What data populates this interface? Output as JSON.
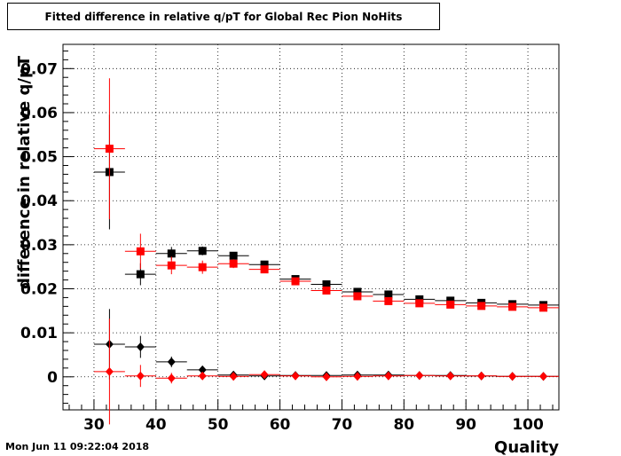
{
  "chart_data": {
    "type": "scatter",
    "title": "Fitted difference in relative q/pT for Global Rec Pion NoHits",
    "xlabel": "Quality",
    "ylabel": "difference in relative q/pT",
    "xlim": [
      25,
      105
    ],
    "ylim": [
      -0.0075,
      0.0755
    ],
    "x_ticks": [
      30,
      40,
      50,
      60,
      70,
      80,
      90,
      100
    ],
    "y_ticks": [
      0,
      0.01,
      0.02,
      0.03,
      0.04,
      0.05,
      0.06,
      0.07
    ],
    "y_tick_labels": [
      "0",
      "0.01",
      "0.02",
      "0.03",
      "0.04",
      "0.05",
      "0.06",
      "0.07"
    ],
    "grid": true,
    "x_bin_halfwidth": 2.5,
    "series": [
      {
        "marker": "square",
        "color": "#000000",
        "x": [
          32.5,
          37.5,
          42.5,
          47.5,
          52.5,
          57.5,
          62.5,
          67.5,
          72.5,
          77.5,
          82.5,
          87.5,
          92.5,
          97.5,
          102.5
        ],
        "y": [
          0.0465,
          0.0233,
          0.028,
          0.0286,
          0.0275,
          0.0255,
          0.0222,
          0.021,
          0.0193,
          0.0187,
          0.0176,
          0.0173,
          0.0168,
          0.0165,
          0.0163
        ],
        "yerr": [
          0.013,
          0.0025,
          0.0015,
          0.001,
          0.0008,
          0.0007,
          0.0006,
          0.0005,
          0.0004,
          0.0004,
          0.0004,
          0.0004,
          0.0003,
          0.0003,
          0.0003
        ]
      },
      {
        "marker": "square",
        "color": "#ff0000",
        "x": [
          32.5,
          37.5,
          42.5,
          47.5,
          52.5,
          57.5,
          62.5,
          67.5,
          72.5,
          77.5,
          82.5,
          87.5,
          92.5,
          97.5,
          102.5
        ],
        "y": [
          0.0518,
          0.0285,
          0.0253,
          0.0249,
          0.0257,
          0.0244,
          0.0217,
          0.0196,
          0.0183,
          0.0172,
          0.0167,
          0.0164,
          0.0161,
          0.0159,
          0.0157
        ],
        "yerr": [
          0.016,
          0.004,
          0.002,
          0.0015,
          0.001,
          0.0008,
          0.0007,
          0.0006,
          0.0005,
          0.0004,
          0.0004,
          0.0004,
          0.0003,
          0.0003,
          0.0003
        ]
      },
      {
        "marker": "diamond",
        "color": "#000000",
        "x": [
          32.5,
          37.5,
          42.5,
          47.5,
          52.5,
          57.5,
          62.5,
          67.5,
          72.5,
          77.5,
          82.5,
          87.5,
          92.5,
          97.5,
          102.5
        ],
        "y": [
          0.0074,
          0.0068,
          0.0034,
          0.0016,
          0.0004,
          0.0002,
          0.0003,
          0.0003,
          0.0004,
          0.0004,
          0.0003,
          0.0003,
          0.0002,
          0.0001,
          0.0001
        ],
        "yerr": [
          0.008,
          0.0025,
          0.0012,
          0.0007,
          0.0004,
          0.0003,
          0.0003,
          0.0002,
          0.0002,
          0.0002,
          0.0002,
          0.0002,
          0.0002,
          0.0001,
          0.0001
        ]
      },
      {
        "marker": "diamond",
        "color": "#ff0000",
        "x": [
          32.5,
          37.5,
          42.5,
          47.5,
          52.5,
          57.5,
          62.5,
          67.5,
          72.5,
          77.5,
          82.5,
          87.5,
          92.5,
          97.5,
          102.5
        ],
        "y": [
          0.0012,
          0.0002,
          -0.0003,
          0.0002,
          0.0001,
          0.0005,
          0.0002,
          0.0,
          0.0001,
          0.0002,
          0.0003,
          0.0002,
          0.0002,
          0.0001,
          0.0001
        ],
        "yerr": [
          0.012,
          0.0025,
          0.0012,
          0.0007,
          0.0005,
          0.0004,
          0.0003,
          0.0003,
          0.0002,
          0.0002,
          0.0002,
          0.0002,
          0.0002,
          0.0001,
          0.0001
        ]
      }
    ]
  },
  "footer": {
    "timestamp": "Mon Jun 11 09:22:04 2018"
  }
}
